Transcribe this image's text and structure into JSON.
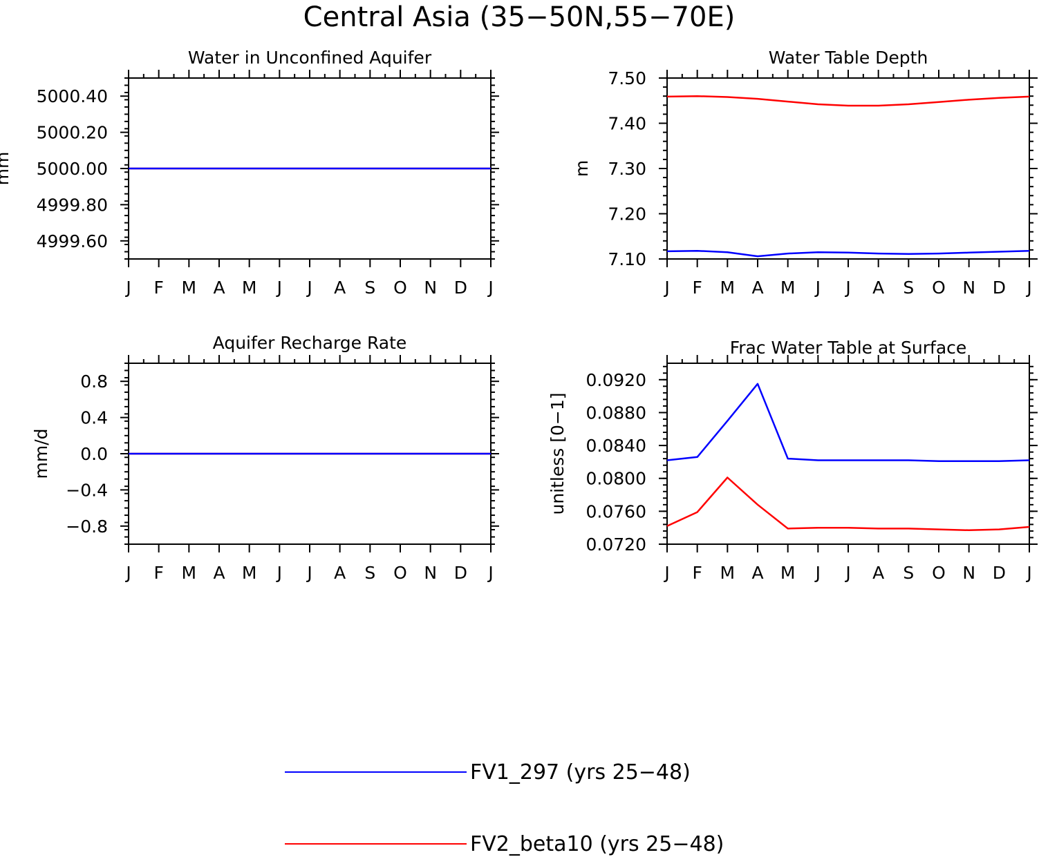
{
  "title": "Central Asia (35−50N,55−70E)",
  "colors": {
    "FV1": "#0000ff",
    "FV2": "#ff0000",
    "axes": "#000000"
  },
  "legend": [
    {
      "label": "FV1_297 (yrs 25−48)",
      "color": "#0000ff"
    },
    {
      "label": "FV2_beta10 (yrs 25−48)",
      "color": "#ff0000"
    }
  ],
  "chart_data": [
    {
      "type": "line",
      "title": "Water in Unconfined Aquifer",
      "ylabel": "mm",
      "xlabel": "",
      "categories": [
        "J",
        "F",
        "M",
        "A",
        "M",
        "J",
        "J",
        "A",
        "S",
        "O",
        "N",
        "D",
        "J"
      ],
      "ylim": [
        4999.5,
        5000.5
      ],
      "yticks": [
        4999.6,
        4999.8,
        5000.0,
        5000.2,
        5000.4
      ],
      "ytick_labels": [
        "4999.60",
        "4999.80",
        "5000.00",
        "5000.20",
        "5000.40"
      ],
      "series": [
        {
          "name": "FV1_297 (yrs 25−48)",
          "color": "#0000ff",
          "values": [
            5000,
            5000,
            5000,
            5000,
            5000,
            5000,
            5000,
            5000,
            5000,
            5000,
            5000,
            5000,
            5000
          ]
        },
        {
          "name": "FV2_beta10 (yrs 25−48)",
          "color": "#ff0000",
          "values": [
            5000,
            5000,
            5000,
            5000,
            5000,
            5000,
            5000,
            5000,
            5000,
            5000,
            5000,
            5000,
            5000
          ]
        }
      ]
    },
    {
      "type": "line",
      "title": "Water Table Depth",
      "ylabel": "m",
      "xlabel": "",
      "categories": [
        "J",
        "F",
        "M",
        "A",
        "M",
        "J",
        "J",
        "A",
        "S",
        "O",
        "N",
        "D",
        "J"
      ],
      "ylim": [
        7.1,
        7.5
      ],
      "yticks": [
        7.1,
        7.2,
        7.3,
        7.4,
        7.5
      ],
      "ytick_labels": [
        "7.10",
        "7.20",
        "7.30",
        "7.40",
        "7.50"
      ],
      "series": [
        {
          "name": "FV1_297 (yrs 25−48)",
          "color": "#0000ff",
          "values": [
            7.117,
            7.118,
            7.115,
            7.106,
            7.112,
            7.115,
            7.114,
            7.112,
            7.111,
            7.112,
            7.114,
            7.116,
            7.118
          ]
        },
        {
          "name": "FV2_beta10 (yrs 25−48)",
          "color": "#ff0000",
          "values": [
            7.459,
            7.46,
            7.458,
            7.454,
            7.448,
            7.442,
            7.439,
            7.439,
            7.442,
            7.447,
            7.452,
            7.456,
            7.459
          ]
        }
      ]
    },
    {
      "type": "line",
      "title": "Aquifer Recharge Rate",
      "ylabel": "mm/d",
      "xlabel": "",
      "categories": [
        "J",
        "F",
        "M",
        "A",
        "M",
        "J",
        "J",
        "A",
        "S",
        "O",
        "N",
        "D",
        "J"
      ],
      "ylim": [
        -1.0,
        1.0
      ],
      "yticks": [
        -0.8,
        -0.4,
        0.0,
        0.4,
        0.8
      ],
      "ytick_labels": [
        "−0.8",
        "−0.4",
        "0.0",
        "0.4",
        "0.8"
      ],
      "series": [
        {
          "name": "FV1_297 (yrs 25−48)",
          "color": "#0000ff",
          "values": [
            0,
            0,
            0,
            0,
            0,
            0,
            0,
            0,
            0,
            0,
            0,
            0,
            0
          ]
        },
        {
          "name": "FV2_beta10 (yrs 25−48)",
          "color": "#ff0000",
          "values": [
            0,
            0,
            0,
            0,
            0,
            0,
            0,
            0,
            0,
            0,
            0,
            0,
            0
          ]
        }
      ]
    },
    {
      "type": "line",
      "title": "Frac Water Table at Surface",
      "ylabel": "unitless [0−1]",
      "xlabel": "",
      "categories": [
        "J",
        "F",
        "M",
        "A",
        "M",
        "J",
        "J",
        "A",
        "S",
        "O",
        "N",
        "D",
        "J"
      ],
      "ylim": [
        0.072,
        0.094
      ],
      "yticks": [
        0.072,
        0.076,
        0.08,
        0.084,
        0.088,
        0.092
      ],
      "ytick_labels": [
        "0.0720",
        "0.0760",
        "0.0800",
        "0.0840",
        "0.0880",
        "0.0920"
      ],
      "series": [
        {
          "name": "FV1_297 (yrs 25−48)",
          "color": "#0000ff",
          "values": [
            0.0822,
            0.0826,
            0.087,
            0.0915,
            0.0824,
            0.0822,
            0.0822,
            0.0822,
            0.0822,
            0.0821,
            0.0821,
            0.0821,
            0.0822
          ]
        },
        {
          "name": "FV2_beta10 (yrs 25−48)",
          "color": "#ff0000",
          "values": [
            0.0742,
            0.0759,
            0.0801,
            0.0768,
            0.0739,
            0.074,
            0.074,
            0.0739,
            0.0739,
            0.0738,
            0.0737,
            0.0738,
            0.0741
          ]
        }
      ]
    }
  ]
}
